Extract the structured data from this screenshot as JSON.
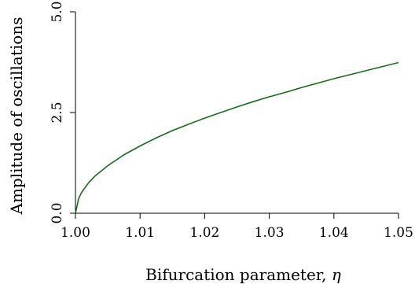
{
  "chart_data": {
    "type": "line",
    "title": "",
    "xlabel": "Bifurcation parameter, ",
    "xlabel_symbol": "η",
    "ylabel": "Amplitude of oscillations",
    "xlim": [
      1.0,
      1.05
    ],
    "ylim": [
      0.0,
      5.0
    ],
    "xticks": [
      1.0,
      1.01,
      1.02,
      1.03,
      1.04,
      1.05
    ],
    "xtick_labels": [
      "1.00",
      "1.01",
      "1.02",
      "1.03",
      "1.04",
      "1.05"
    ],
    "yticks": [
      0.0,
      2.5,
      5.0
    ],
    "ytick_labels": [
      "0.0",
      "2.5",
      "5.0"
    ],
    "grid": false,
    "series": [
      {
        "color": "#1a6b1a",
        "x": [
          1.0,
          1.0005,
          1.001,
          1.002,
          1.003,
          1.005,
          1.0075,
          1.01,
          1.0125,
          1.015,
          1.0175,
          1.02,
          1.0225,
          1.025,
          1.0275,
          1.03,
          1.0325,
          1.035,
          1.0375,
          1.04,
          1.0425,
          1.045,
          1.0475,
          1.05
        ],
        "y": [
          0.0,
          0.37,
          0.53,
          0.75,
          0.92,
          1.18,
          1.45,
          1.67,
          1.87,
          2.05,
          2.21,
          2.36,
          2.5,
          2.64,
          2.77,
          2.89,
          3.0,
          3.12,
          3.23,
          3.34,
          3.44,
          3.54,
          3.64,
          3.74
        ]
      }
    ]
  }
}
